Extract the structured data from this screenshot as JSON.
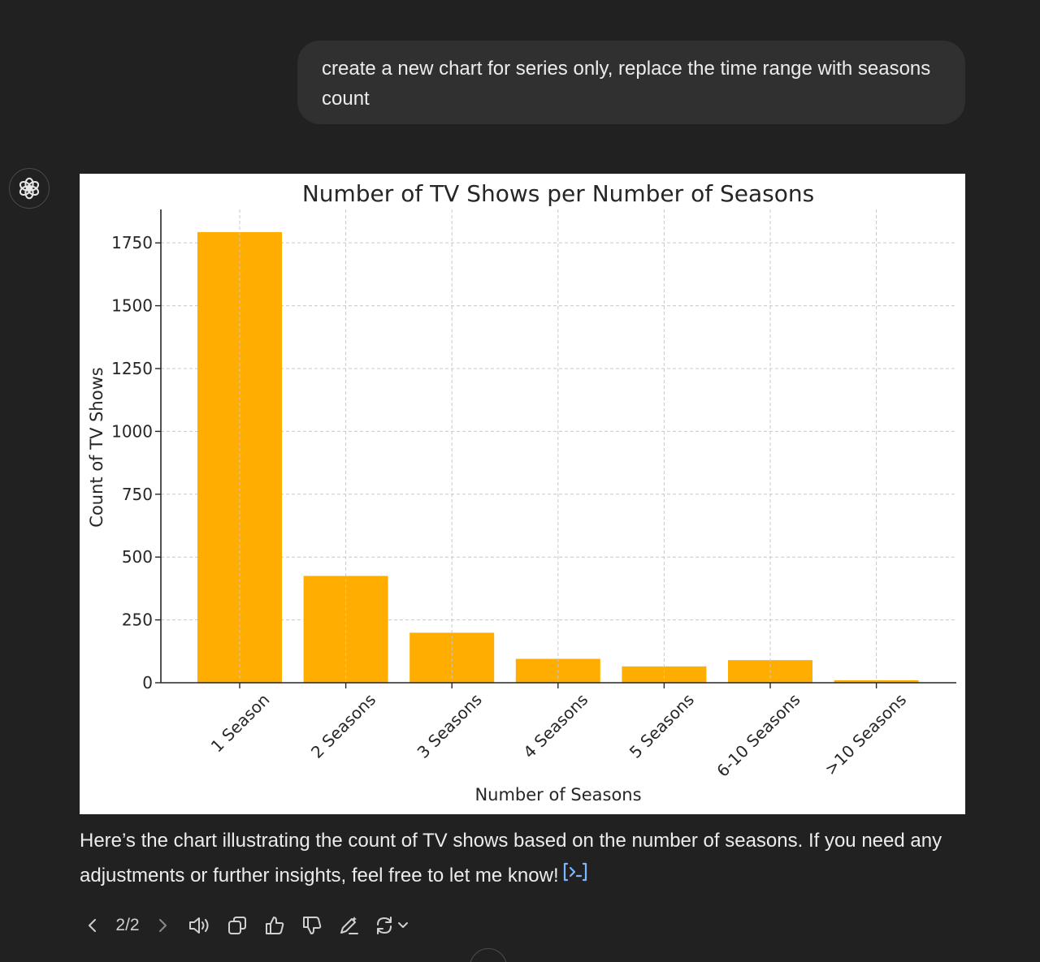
{
  "user_message": {
    "text": "create a new chart for series only, replace the time range with seasons count"
  },
  "assistant": {
    "avatar_icon": "openai-logo-icon",
    "reply_text": "Here’s the chart illustrating the count of TV shows based on the number of seasons. If you need any adjustments or further insights, feel free to let me know!",
    "code_icon": "code-interpreter-icon",
    "pager": "2/2",
    "actions": [
      "previous-icon",
      "next-icon",
      "read-aloud-icon",
      "copy-icon",
      "thumbs-up-icon",
      "thumbs-down-icon",
      "edit-in-canvas-icon",
      "regenerate-icon"
    ]
  },
  "chart_data": {
    "type": "bar",
    "title": "Number of TV Shows per Number of Seasons",
    "xlabel": "Number of Seasons",
    "ylabel": "Count of TV Shows",
    "categories": [
      "1 Season",
      "2 Seasons",
      "3 Seasons",
      "4 Seasons",
      "5 Seasons",
      "6-10 Seasons",
      ">10 Seasons"
    ],
    "values": [
      1793,
      425,
      199,
      95,
      65,
      90,
      10
    ],
    "yticks": [
      0,
      250,
      500,
      750,
      1000,
      1250,
      1500,
      1750
    ],
    "ylim": [
      0,
      1883
    ],
    "grid": true,
    "bar_color": "#ffad00"
  }
}
